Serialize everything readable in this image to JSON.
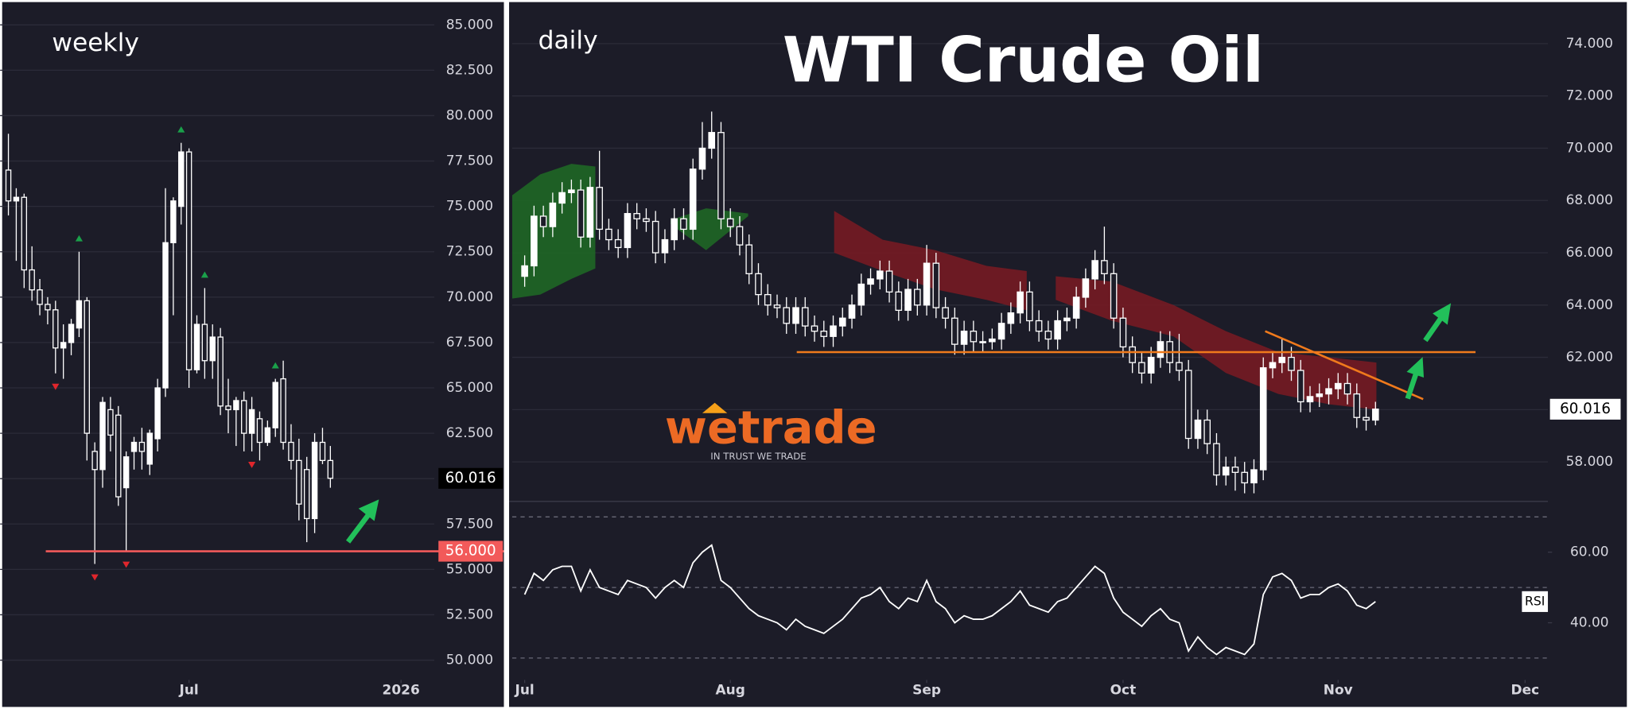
{
  "chart_data": [
    {
      "type": "candlestick",
      "label": "weekly",
      "open": [
        77,
        75.3,
        75.5,
        71.5,
        70.4,
        69.6,
        69.3,
        67.2,
        67.5,
        68.3,
        69.8,
        61.5,
        60.5,
        63.8,
        63.5,
        59.5,
        61.5,
        62,
        60.8,
        62.2,
        65,
        73,
        75,
        78,
        66,
        68.5,
        66.5,
        67.8,
        64,
        63.8,
        64.3,
        62.5,
        63.3,
        62,
        62.8,
        65.5,
        62,
        61,
        60.5,
        57.8,
        62,
        61
      ],
      "high": [
        79,
        76,
        75.7,
        72.8,
        71,
        70,
        69.8,
        68.5,
        68.8,
        72.5,
        70,
        62,
        64.5,
        64.5,
        64,
        61.5,
        62.3,
        62.8,
        62.7,
        65.5,
        76,
        75.5,
        78.5,
        78.2,
        69,
        70.5,
        68.5,
        68.3,
        65.5,
        64.5,
        64.8,
        64.5,
        63.7,
        63.2,
        65.5,
        66.5,
        63,
        62.2,
        61.2,
        62.5,
        62.8,
        61.8
      ],
      "low": [
        74.5,
        72,
        70.5,
        69.8,
        69,
        68.5,
        65.8,
        65.5,
        66.8,
        67.8,
        61,
        55.3,
        59.5,
        61.5,
        58.5,
        56,
        60.5,
        60.5,
        60.2,
        61.5,
        64.5,
        69,
        74,
        65,
        65.8,
        65.5,
        65.5,
        63.5,
        62.5,
        61.8,
        61.5,
        61.5,
        61,
        61.8,
        62.3,
        61.6,
        60.5,
        57.7,
        56.5,
        57,
        60.8,
        59.5
      ],
      "close": [
        75.3,
        75.5,
        71.5,
        70.4,
        69.6,
        69.3,
        67.2,
        67.5,
        68.5,
        69.8,
        62.5,
        60.5,
        64.2,
        62.4,
        59,
        61.2,
        62,
        61.5,
        62.5,
        65,
        73,
        75.3,
        78,
        66,
        68.5,
        66.5,
        67.8,
        64,
        63.8,
        64.3,
        62.5,
        63.8,
        62,
        62.8,
        65.3,
        62,
        61,
        58.6,
        57.8,
        62,
        61,
        60.02
      ],
      "candle_colors": {
        "up": "#ffffff",
        "down": "#1c1c28",
        "wick": "#ffffff"
      },
      "fractals_up": [
        9,
        22,
        25,
        34
      ],
      "fractals_down": [
        6,
        11,
        15,
        31
      ],
      "fractal_colors": {
        "up": "#1aa04a",
        "down": "#e0262c"
      },
      "xlim": [
        -1.06,
        54.5
      ],
      "xticks": [
        {
          "value": 23,
          "label": "Jul"
        },
        {
          "value": 50,
          "label": "2026"
        }
      ],
      "ylim": [
        48.91,
        86.37
      ],
      "yticks": [
        {
          "value": 50,
          "label": "50.000"
        },
        {
          "value": 52.5,
          "label": "52.500"
        },
        {
          "value": 55,
          "label": "55.000"
        },
        {
          "value": 57.5,
          "label": "57.500"
        },
        {
          "value": 60,
          "label": "60.000"
        },
        {
          "value": 62.5,
          "label": "62.500"
        },
        {
          "value": 65,
          "label": "65.000"
        },
        {
          "value": 67.5,
          "label": "67.500"
        },
        {
          "value": 70,
          "label": "70.000"
        },
        {
          "value": 72.5,
          "label": "72.500"
        },
        {
          "value": 75,
          "label": "75.000"
        },
        {
          "value": 77.5,
          "label": "77.500"
        },
        {
          "value": 80,
          "label": "80.000"
        },
        {
          "value": 82.5,
          "label": "82.500"
        },
        {
          "value": 85,
          "label": "85.000"
        }
      ],
      "grid": true,
      "hline": {
        "value": 56,
        "label": "56.000",
        "color": "#f25a5a"
      },
      "last_price": 60.016
    },
    {
      "type": "candlestick",
      "label": "daily",
      "title": "WTI Crude Oil",
      "open": [
        65.1,
        65.5,
        67.4,
        67.0,
        67.9,
        68.3,
        68.4,
        66.6,
        68.5,
        66.9,
        66.5,
        66.2,
        67.5,
        67.3,
        67.2,
        66.0,
        66.5,
        67.3,
        66.9,
        69.2,
        70.0,
        70.6,
        67.3,
        67.0,
        66.3,
        65.2,
        64.4,
        64.0,
        63.9,
        63.3,
        63.9,
        63.2,
        63.0,
        62.8,
        63.2,
        63.5,
        64.0,
        64.8,
        65.0,
        65.3,
        64.5,
        63.8,
        64.6,
        64.0,
        65.6,
        63.9,
        63.5,
        62.5,
        63.0,
        62.6,
        62.6,
        62.7,
        63.3,
        63.7,
        64.5,
        63.4,
        63.0,
        62.7,
        63.4,
        63.5,
        64.3,
        65.0,
        65.7,
        65.2,
        63.5,
        62.4,
        61.8,
        61.4,
        62.0,
        62.6,
        61.8,
        61.5,
        58.9,
        59.6,
        58.7,
        57.5,
        57.8,
        57.6,
        57.2,
        57.7,
        61.6,
        61.8,
        62.0,
        61.5,
        60.3,
        60.5,
        60.6,
        60.8,
        61.0,
        60.6,
        59.7,
        59.6
      ],
      "high": [
        65.9,
        67.8,
        67.8,
        68.3,
        68.7,
        68.8,
        68.8,
        68.9,
        69.9,
        67.3,
        66.9,
        67.9,
        67.9,
        67.7,
        67.6,
        66.9,
        67.7,
        67.7,
        69.6,
        71.0,
        71.4,
        71.0,
        67.7,
        67.4,
        66.7,
        65.6,
        64.8,
        64.4,
        64.3,
        64.3,
        64.3,
        63.6,
        63.4,
        63.6,
        63.9,
        64.4,
        65.2,
        65.4,
        65.7,
        65.7,
        64.9,
        65.0,
        65.0,
        66.3,
        66.0,
        64.3,
        63.9,
        63.4,
        63.4,
        63.0,
        63.1,
        63.7,
        64.1,
        64.9,
        64.9,
        63.8,
        63.4,
        63.8,
        63.9,
        64.7,
        65.4,
        66.1,
        67.0,
        65.6,
        63.9,
        62.8,
        62.2,
        62.4,
        63.0,
        63.0,
        62.9,
        61.9,
        60.0,
        60.0,
        59.1,
        58.2,
        58.2,
        58.0,
        58.1,
        62.0,
        62.2,
        62.7,
        62.4,
        61.9,
        60.9,
        61.0,
        61.2,
        61.4,
        61.4,
        61.0,
        60.1,
        60.3
      ],
      "low": [
        64.7,
        65.1,
        66.6,
        66.6,
        67.5,
        67.9,
        66.2,
        66.2,
        66.5,
        66.1,
        65.8,
        65.8,
        66.9,
        66.8,
        65.6,
        65.6,
        66.1,
        66.5,
        66.5,
        68.8,
        69.6,
        66.9,
        66.6,
        65.9,
        64.8,
        64.0,
        63.6,
        63.5,
        62.9,
        62.9,
        62.8,
        62.6,
        62.4,
        62.4,
        62.8,
        63.1,
        63.6,
        64.4,
        64.6,
        64.1,
        63.4,
        63.4,
        63.6,
        63.6,
        63.5,
        63.1,
        62.1,
        62.1,
        62.2,
        62.2,
        62.3,
        62.3,
        62.9,
        63.3,
        63.0,
        62.6,
        62.3,
        62.3,
        63.0,
        63.1,
        63.9,
        64.6,
        64.8,
        63.1,
        62.0,
        61.4,
        61.0,
        61.0,
        61.6,
        61.4,
        61.1,
        58.5,
        58.5,
        58.3,
        57.1,
        57.1,
        56.9,
        56.8,
        56.8,
        57.3,
        61.2,
        61.4,
        61.1,
        59.9,
        59.9,
        60.1,
        60.2,
        60.4,
        60.2,
        59.3,
        59.2,
        59.4
      ],
      "close": [
        65.5,
        67.4,
        67.0,
        67.9,
        68.3,
        68.4,
        66.6,
        68.5,
        66.9,
        66.5,
        66.2,
        67.5,
        67.3,
        67.2,
        66.0,
        66.5,
        67.3,
        66.9,
        69.2,
        70.0,
        70.6,
        67.3,
        67.0,
        66.3,
        65.2,
        64.4,
        64.0,
        63.9,
        63.3,
        63.9,
        63.2,
        63.0,
        62.8,
        63.2,
        63.5,
        64.0,
        64.8,
        65.0,
        65.3,
        64.5,
        63.8,
        64.6,
        64.0,
        65.6,
        63.9,
        63.5,
        62.5,
        63.0,
        62.6,
        62.6,
        62.7,
        63.3,
        63.7,
        64.5,
        63.4,
        63.0,
        62.7,
        63.4,
        63.5,
        64.3,
        65.0,
        65.7,
        65.2,
        63.5,
        62.4,
        61.8,
        61.4,
        62.0,
        62.6,
        61.8,
        61.5,
        58.9,
        59.6,
        58.7,
        57.5,
        57.8,
        57.6,
        57.2,
        57.7,
        61.6,
        61.8,
        62.0,
        61.5,
        60.3,
        60.5,
        60.6,
        60.8,
        61.0,
        60.6,
        59.7,
        59.6,
        60.02
      ],
      "candle_colors": {
        "up": "#ffffff",
        "down": "#1c1c28",
        "wick": "#ffffff"
      },
      "bands": [
        {
          "color": "#1f6b25",
          "x": [
            -1.33,
            1.67,
            5,
            7.56
          ],
          "upper": [
            68.2,
            69,
            69.4,
            69.3
          ],
          "lower": [
            64.25,
            64.4,
            65,
            65.4
          ]
        },
        {
          "color": "#1f6b25",
          "x": [
            15.6,
            19.4,
            23.9
          ],
          "upper": [
            67.25,
            67.7,
            67.5
          ],
          "lower": [
            67.1,
            66.1,
            67.4
          ]
        },
        {
          "color": "#7a1a22",
          "x": [
            33.1,
            38.3,
            43.9,
            49.4,
            53.7
          ],
          "upper": [
            67.6,
            66.5,
            66.1,
            65.5,
            65.3
          ],
          "lower": [
            66.0,
            65.3,
            64.6,
            64.2,
            63.8
          ]
        },
        {
          "color": "#7a1a22",
          "x": [
            56.8,
            62.8,
            69.4,
            75,
            80.6,
            86.1,
            91.1
          ],
          "upper": [
            65.1,
            64.9,
            64,
            63,
            62.2,
            62,
            61.8
          ],
          "lower": [
            64.2,
            63.4,
            62.8,
            61.4,
            60.6,
            60.2,
            60
          ]
        }
      ],
      "lines": [
        {
          "color": "#f07a1c",
          "x": [
            29.1,
            101.7
          ],
          "y": [
            62.2,
            62.2
          ]
        },
        {
          "color": "#f07a1c",
          "x": [
            79.2,
            96.1
          ],
          "y": [
            63.0,
            60.4
          ]
        }
      ],
      "xlim": [
        -1.333,
        109.44
      ],
      "xticks": [
        {
          "value": 0,
          "label": "Jul"
        },
        {
          "value": 22,
          "label": "Aug"
        },
        {
          "value": 43,
          "label": "Sep"
        },
        {
          "value": 64,
          "label": "Oct"
        },
        {
          "value": 87,
          "label": "Nov"
        },
        {
          "value": 107,
          "label": "Dec"
        }
      ],
      "ylim": [
        56.53,
        75.47
      ],
      "yticks": [
        {
          "value": 58,
          "label": "58.000"
        },
        {
          "value": 60,
          "label": "60.000"
        },
        {
          "value": 62,
          "label": "62.000"
        },
        {
          "value": 64,
          "label": "64.000"
        },
        {
          "value": 66,
          "label": "66.000"
        },
        {
          "value": 68,
          "label": "68.000"
        },
        {
          "value": 70,
          "label": "70.000"
        },
        {
          "value": 72,
          "label": "72.000"
        },
        {
          "value": 74,
          "label": "74.000"
        }
      ],
      "grid": true,
      "last_price": 60.016,
      "rsi": {
        "label": "RSI",
        "color": "#ffffff",
        "values": [
          48,
          54,
          52,
          55,
          56,
          56,
          49,
          55,
          50,
          49,
          48,
          52,
          51,
          50,
          47,
          50,
          52,
          50,
          57,
          60,
          62,
          52,
          50,
          47,
          44,
          42,
          41,
          40,
          38,
          41,
          39,
          38,
          37,
          39,
          41,
          44,
          47,
          48,
          50,
          46,
          44,
          47,
          46,
          52,
          46,
          44,
          40,
          42,
          41,
          41,
          42,
          44,
          46,
          49,
          45,
          44,
          43,
          46,
          47,
          50,
          53,
          56,
          54,
          47,
          43,
          41,
          39,
          42,
          44,
          41,
          40,
          32,
          36,
          33,
          31,
          33,
          32,
          31,
          34,
          48,
          53,
          54,
          52,
          47,
          48,
          48,
          50,
          51,
          49,
          45,
          44,
          46
        ],
        "ylim": [
          23.8,
          74.4
        ],
        "yticks": [
          {
            "value": 40,
            "label": "40.00"
          },
          {
            "value": 60,
            "label": "60.00"
          }
        ],
        "levels": [
          30,
          50,
          70
        ]
      }
    }
  ],
  "logo": {
    "name": "wetrade",
    "tagline": "IN TRUST WE TRADE"
  }
}
